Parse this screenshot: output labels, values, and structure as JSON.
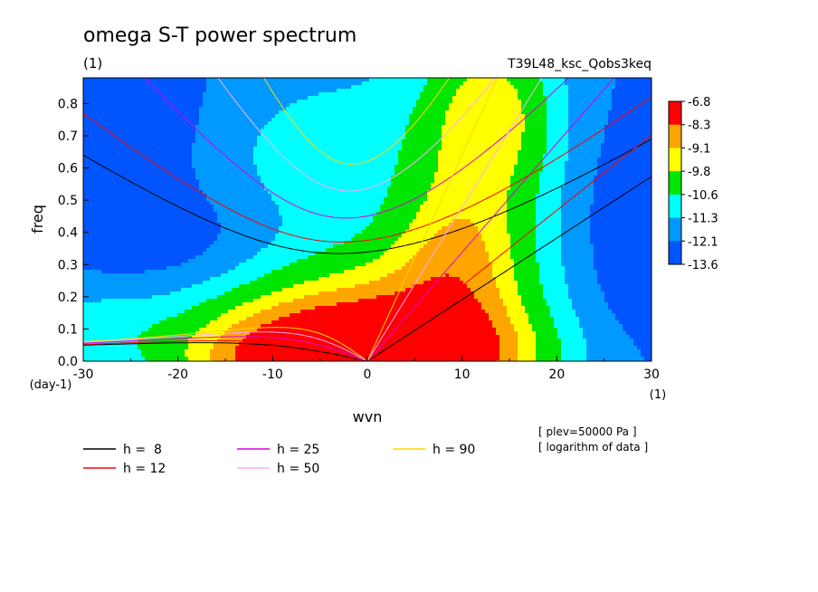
{
  "chart_data": {
    "type": "heatmap",
    "title": "omega S-T power spectrum",
    "subtitle_left": "(1)",
    "subtitle_right": "T39L48_ksc_Qobs3keq",
    "xlabel": "wvn",
    "ylabel": "freq",
    "x_unit": "(1)",
    "y_unit": "(day-1)",
    "xlim": [
      -30,
      30
    ],
    "ylim": [
      0,
      0.88
    ],
    "x_ticks": [
      -30,
      -20,
      -10,
      0,
      10,
      20,
      30
    ],
    "y_ticks": [
      0.0,
      0.1,
      0.2,
      0.3,
      0.4,
      0.5,
      0.6,
      0.7,
      0.8
    ],
    "y_tick_labels": [
      "0.0",
      "0.1",
      "0.2",
      "0.3",
      "0.4",
      "0.5",
      "0.6",
      "0.7",
      "0.8"
    ],
    "colorbar": {
      "labels": [
        "-6.8",
        "-8.3",
        "-9.1",
        "-9.8",
        "-10.6",
        "-11.3",
        "-12.1",
        "-13.6"
      ],
      "colors": [
        "#ff0000",
        "#ffa500",
        "#ffff00",
        "#00e600",
        "#00ffff",
        "#0099ff",
        "#0055ff"
      ]
    },
    "field_levels": [
      {
        "max": -8.3,
        "color": "#ff0000"
      },
      {
        "max": -9.1,
        "color": "#ffa500"
      },
      {
        "max": -9.8,
        "color": "#ffff00"
      },
      {
        "max": -10.6,
        "color": "#00e600"
      },
      {
        "max": -11.3,
        "color": "#00ffff"
      },
      {
        "max": -12.1,
        "color": "#0099ff"
      },
      {
        "max": -13.6,
        "color": "#0055ff"
      }
    ],
    "dispersion_curves": [
      {
        "label": "h =  8",
        "h": 8,
        "color": "#000000"
      },
      {
        "label": "h = 12",
        "h": 12,
        "color": "#ff0000"
      },
      {
        "label": "h = 25",
        "h": 25,
        "color": "#dd00dd"
      },
      {
        "label": "h = 50",
        "h": 50,
        "color": "#ffaaff"
      },
      {
        "label": "h = 90",
        "h": 90,
        "color": "#ffd700"
      }
    ],
    "notes": [
      "[ plev=50000 Pa ]",
      "[ logarithm of data ]"
    ]
  }
}
